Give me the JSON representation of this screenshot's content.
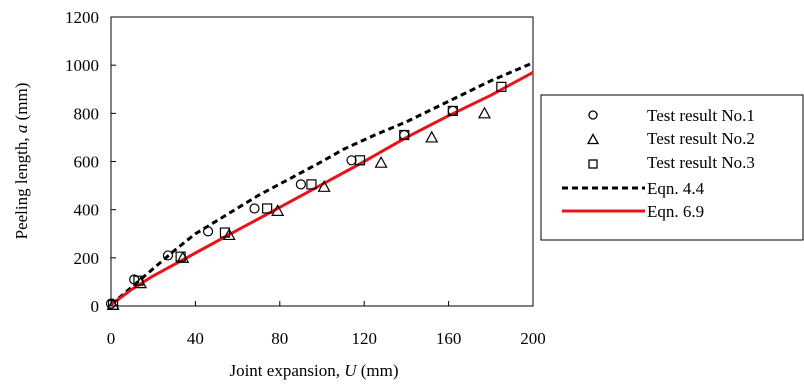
{
  "chart_data": {
    "type": "scatter",
    "title": "",
    "xlabel": "Joint expansion, U (mm)",
    "ylabel": "Peeling length, a (mm)",
    "xlabel_main": "Joint expansion, ",
    "xlabel_var": "U",
    "xlabel_unit": " (mm)",
    "ylabel_main": "Peeling length, ",
    "ylabel_var": "a",
    "ylabel_unit": " (mm)",
    "xlim": [
      0,
      200
    ],
    "ylim": [
      0,
      1200
    ],
    "xticks": [
      0,
      40,
      80,
      120,
      160,
      200
    ],
    "yticks": [
      0,
      200,
      400,
      600,
      800,
      1000,
      1200
    ],
    "grid": false,
    "legend_position": "outside-right",
    "series": [
      {
        "name": "Test result No.1",
        "kind": "marker",
        "marker": "circle",
        "points": [
          [
            0,
            10
          ],
          [
            11,
            110
          ],
          [
            27,
            210
          ],
          [
            46,
            310
          ],
          [
            68,
            405
          ],
          [
            90,
            505
          ],
          [
            114,
            605
          ],
          [
            139,
            710
          ],
          [
            162,
            810
          ]
        ]
      },
      {
        "name": "Test result No.2",
        "kind": "marker",
        "marker": "triangle",
        "points": [
          [
            1,
            5
          ],
          [
            14,
            95
          ],
          [
            34,
            200
          ],
          [
            56,
            295
          ],
          [
            79,
            395
          ],
          [
            101,
            495
          ],
          [
            128,
            595
          ],
          [
            152,
            700
          ],
          [
            177,
            800
          ]
        ]
      },
      {
        "name": "Test result No.3",
        "kind": "marker",
        "marker": "square",
        "points": [
          [
            1,
            5
          ],
          [
            13,
            105
          ],
          [
            33,
            205
          ],
          [
            54,
            305
          ],
          [
            74,
            405
          ],
          [
            95,
            505
          ],
          [
            118,
            605
          ],
          [
            139,
            710
          ],
          [
            162,
            810
          ],
          [
            185,
            910
          ]
        ]
      },
      {
        "name": "Eqn. 4.4",
        "kind": "line",
        "style": "dashed",
        "color": "#000000",
        "points": [
          [
            0,
            5
          ],
          [
            10,
            80
          ],
          [
            20,
            155
          ],
          [
            30,
            230
          ],
          [
            40,
            300
          ],
          [
            55,
            380
          ],
          [
            70,
            460
          ],
          [
            85,
            530
          ],
          [
            100,
            600
          ],
          [
            110,
            650
          ],
          [
            125,
            710
          ],
          [
            140,
            765
          ],
          [
            160,
            850
          ],
          [
            180,
            935
          ],
          [
            200,
            1010
          ]
        ]
      },
      {
        "name": "Eqn. 6.9",
        "kind": "line",
        "style": "solid",
        "color": "#e8141a",
        "points": [
          [
            0,
            5
          ],
          [
            10,
            70
          ],
          [
            20,
            125
          ],
          [
            40,
            220
          ],
          [
            60,
            315
          ],
          [
            80,
            410
          ],
          [
            100,
            505
          ],
          [
            120,
            600
          ],
          [
            140,
            700
          ],
          [
            160,
            790
          ],
          [
            180,
            875
          ],
          [
            200,
            970
          ]
        ]
      }
    ]
  }
}
